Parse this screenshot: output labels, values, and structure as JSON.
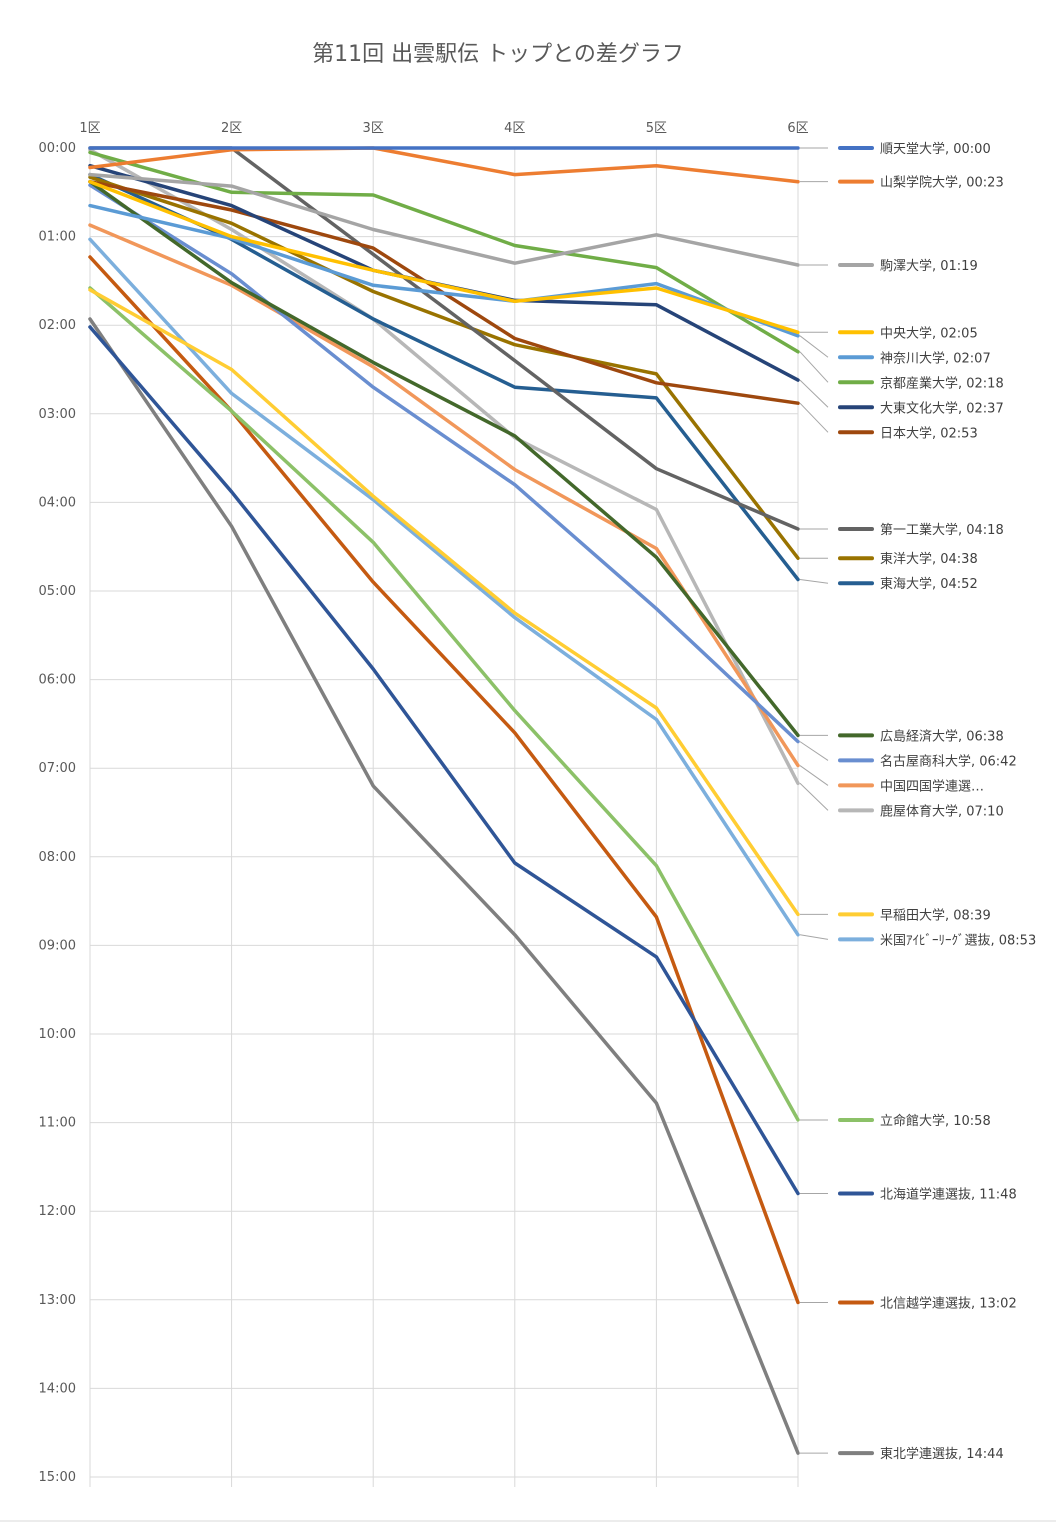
{
  "chart_data": {
    "type": "line",
    "title": "第11回 出雲駅伝 トップとの差グラフ",
    "categories": [
      "1区",
      "2区",
      "3区",
      "4区",
      "5区",
      "6区"
    ],
    "y_tick_labels": [
      "00:00",
      "01:00",
      "02:00",
      "03:00",
      "04:00",
      "05:00",
      "06:00",
      "07:00",
      "08:00",
      "09:00",
      "10:00",
      "11:00",
      "12:00",
      "13:00",
      "14:00",
      "15:00"
    ],
    "ylim": [
      0,
      15
    ],
    "y_unit": "minutes behind leader (mm:ss)",
    "y_inverted": true,
    "grid": true,
    "legend_position": "right, beside line ends",
    "series": [
      {
        "name": "順天堂大学",
        "label": "順天堂大学, 00:00",
        "color": "#4472c4",
        "values": [
          0.0,
          0.0,
          0.0,
          0.0,
          0.0,
          0.0
        ]
      },
      {
        "name": "山梨学院大学",
        "label": "山梨学院大学, 00:23",
        "color": "#ed7d31",
        "values": [
          0.22,
          0.02,
          0.0,
          0.3,
          0.2,
          0.38
        ]
      },
      {
        "name": "駒澤大学",
        "label": "駒澤大学, 01:19",
        "color": "#a5a5a5",
        "values": [
          0.3,
          0.43,
          0.92,
          1.3,
          0.98,
          1.32
        ]
      },
      {
        "name": "中央大学",
        "label": "中央大学, 02:05",
        "color": "#ffc000",
        "values": [
          0.38,
          1.0,
          1.38,
          1.73,
          1.58,
          2.08
        ]
      },
      {
        "name": "神奈川大学",
        "label": "神奈川大学, 02:07",
        "color": "#5b9bd5",
        "values": [
          0.65,
          1.02,
          1.55,
          1.73,
          1.53,
          2.12
        ]
      },
      {
        "name": "京都産業大学",
        "label": "京都産業大学, 02:18",
        "color": "#70ad47",
        "values": [
          0.05,
          0.5,
          0.53,
          1.1,
          1.35,
          2.3
        ]
      },
      {
        "name": "大東文化大学",
        "label": "大東文化大学, 02:37",
        "color": "#264478",
        "values": [
          0.2,
          0.65,
          1.38,
          1.72,
          1.77,
          2.62
        ]
      },
      {
        "name": "日本大学",
        "label": "日本大学, 02:53",
        "color": "#9e480e",
        "values": [
          0.38,
          0.7,
          1.13,
          2.15,
          2.65,
          2.88
        ]
      },
      {
        "name": "第一工業大学",
        "label": "第一工業大学, 04:18",
        "color": "#636363",
        "values": [
          0.0,
          0.0,
          1.2,
          2.4,
          3.62,
          4.3
        ]
      },
      {
        "name": "東洋大学",
        "label": "東洋大学, 04:38",
        "color": "#997300",
        "values": [
          0.33,
          0.85,
          1.62,
          2.22,
          2.55,
          4.63
        ]
      },
      {
        "name": "東海大学",
        "label": "東海大学, 04:52",
        "color": "#255e91",
        "values": [
          0.3,
          1.03,
          1.93,
          2.7,
          2.82,
          4.87
        ]
      },
      {
        "name": "広島経済大学",
        "label": "広島経済大学, 06:38",
        "color": "#43682b",
        "values": [
          0.38,
          1.52,
          2.42,
          3.25,
          4.62,
          6.63
        ]
      },
      {
        "name": "名古屋商科大学",
        "label": "名古屋商科大学, 06:42",
        "color": "#698ed0",
        "values": [
          0.42,
          1.42,
          2.7,
          3.8,
          5.2,
          6.7
        ]
      },
      {
        "name": "中国四国学連選抜",
        "label": "中国四国学連選…",
        "color": "#f1975a",
        "values": [
          0.87,
          1.55,
          2.47,
          3.63,
          4.52,
          6.97
        ]
      },
      {
        "name": "鹿屋体育大学",
        "label": "鹿屋体育大学, 07:10",
        "color": "#b7b7b7",
        "values": [
          0.02,
          0.92,
          1.93,
          3.27,
          4.08,
          7.17
        ]
      },
      {
        "name": "早稲田大学",
        "label": "早稲田大学, 08:39",
        "color": "#ffcd33",
        "values": [
          1.6,
          2.5,
          3.93,
          5.25,
          6.32,
          8.65
        ]
      },
      {
        "name": "米国ｱｲﾋﾞｰﾘｰｸﾞ選抜",
        "label": "米国ｱｲﾋﾞｰﾘｰｸﾞ選抜, 08:53",
        "color": "#7cafdd",
        "values": [
          1.03,
          2.77,
          3.97,
          5.3,
          6.45,
          8.88
        ]
      },
      {
        "name": "立命館大学",
        "label": "立命館大学, 10:58",
        "color": "#8cc168",
        "values": [
          1.58,
          2.97,
          4.45,
          6.35,
          8.1,
          10.97
        ]
      },
      {
        "name": "北海道学連選抜",
        "label": "北海道学連選抜, 11:48",
        "color": "#2f5597",
        "values": [
          2.02,
          3.88,
          5.88,
          8.07,
          9.13,
          11.8
        ]
      },
      {
        "name": "北信越学連選抜",
        "label": "北信越学連選抜, 13:02",
        "color": "#c55a11",
        "values": [
          1.23,
          2.97,
          4.9,
          6.6,
          8.68,
          13.03
        ]
      },
      {
        "name": "東北学連選抜",
        "label": "東北学連選抜, 14:44",
        "color": "#7f7f7f",
        "values": [
          1.93,
          4.27,
          7.2,
          8.88,
          10.78,
          14.73
        ]
      }
    ]
  }
}
